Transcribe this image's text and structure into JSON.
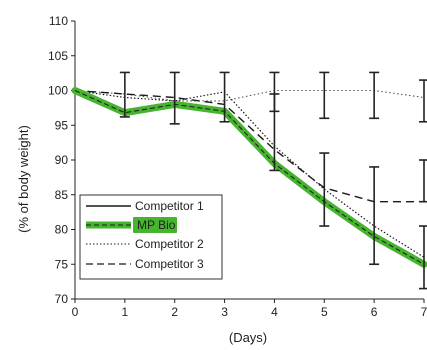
{
  "chart_data": {
    "type": "line",
    "xlabel": "(Days)",
    "ylabel": "(% of body weight)",
    "xlim": [
      0,
      7
    ],
    "ylim": [
      70,
      110
    ],
    "x_ticks": [
      "0",
      "1",
      "2",
      "3",
      "4",
      "5",
      "6",
      "7"
    ],
    "y_ticks": [
      "70",
      "75",
      "80",
      "85",
      "90",
      "95",
      "100",
      "105",
      "110"
    ],
    "grid": false,
    "legend_placement": "bottom-left",
    "highlight_color": "#46b42e",
    "series": [
      {
        "name": "Competitor 1",
        "style": "solid",
        "color": "#1a1a1a",
        "x": [
          0,
          1,
          2,
          3,
          4,
          5,
          6,
          7
        ],
        "values": [
          100,
          96.8,
          98,
          97,
          89.5,
          84,
          79,
          75
        ]
      },
      {
        "name": "MP Bio",
        "style": "highlight",
        "color": "#46b42e",
        "x": [
          0,
          1,
          2,
          3,
          4,
          5,
          6,
          7
        ],
        "values": [
          100,
          96.8,
          98,
          97,
          89.5,
          84,
          79,
          75
        ]
      },
      {
        "name": "Competitor 2",
        "style": "dotted",
        "color": "#1a1a1a",
        "x": [
          0,
          1,
          2,
          3,
          4,
          5,
          6,
          7
        ],
        "values": [
          100,
          99,
          98.5,
          99.8,
          92,
          85.8,
          80.5,
          76
        ]
      },
      {
        "name": "Competitor 3",
        "style": "dashed",
        "color": "#1a1a1a",
        "x": [
          0,
          1,
          2,
          3,
          4,
          5,
          6,
          7
        ],
        "values": [
          100,
          99.5,
          99,
          98,
          91.5,
          86,
          84,
          84
        ]
      },
      {
        "name": "",
        "style": "dotted-flat",
        "color": "#555555",
        "x": [
          0,
          1,
          2,
          3,
          4,
          5,
          6,
          7
        ],
        "values": [
          100,
          99.5,
          98.5,
          98.5,
          100,
          100,
          100,
          99
        ]
      }
    ],
    "error_bars": [
      {
        "x": 1,
        "low": 96.2,
        "high": 102.6
      },
      {
        "x": 2,
        "low": 95.2,
        "high": 102.6
      },
      {
        "x": 3,
        "low": 95.5,
        "high": 102.6
      },
      {
        "x": 4,
        "low": 88.5,
        "high": 99.5
      },
      {
        "x": 4,
        "low": 97,
        "high": 102.6
      },
      {
        "x": 5,
        "low": 80.5,
        "high": 91
      },
      {
        "x": 5,
        "low": 96,
        "high": 102.6
      },
      {
        "x": 6,
        "low": 75,
        "high": 89
      },
      {
        "x": 6,
        "low": 96,
        "high": 102.6
      },
      {
        "x": 7,
        "low": 71.5,
        "high": 80.5
      },
      {
        "x": 7,
        "low": 84,
        "high": 90
      },
      {
        "x": 7,
        "low": 95.5,
        "high": 101.5
      }
    ]
  }
}
